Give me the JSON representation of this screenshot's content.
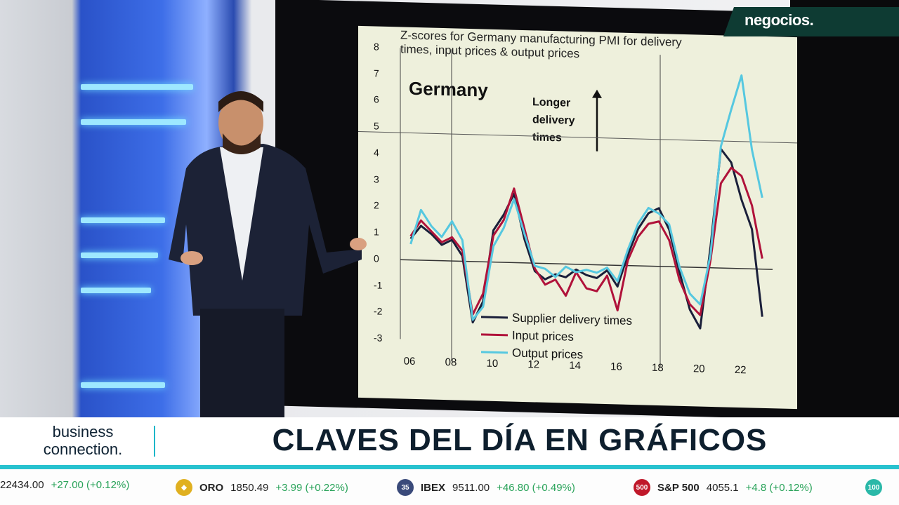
{
  "brand": {
    "name": "negocios."
  },
  "chart": {
    "title": "Z-scores for Germany manufacturing PMI for delivery\ntimes, input prices & output prices",
    "country_label": "Germany",
    "annotation": "Longer\ndelivery\ntimes",
    "y_ticks": [
      "8",
      "7",
      "6",
      "5",
      "4",
      "3",
      "2",
      "1",
      "0",
      "-1",
      "-2",
      "-3"
    ],
    "x_ticks": [
      "06",
      "08",
      "10",
      "12",
      "14",
      "16",
      "18",
      "20",
      "22"
    ],
    "legend": [
      {
        "label": "Supplier delivery times",
        "color": "#1a1f3a"
      },
      {
        "label": "Input prices",
        "color": "#b0123a"
      },
      {
        "label": "Output prices",
        "color": "#56c8e0"
      }
    ]
  },
  "chart_data": {
    "type": "line",
    "title": "Z-scores for Germany manufacturing PMI for delivery times, input prices & output prices",
    "x": [
      2006,
      2006.5,
      2007,
      2007.5,
      2008,
      2008.5,
      2009,
      2009.5,
      2010,
      2010.5,
      2011,
      2011.5,
      2012,
      2012.5,
      2013,
      2013.5,
      2014,
      2014.5,
      2015,
      2015.5,
      2016,
      2016.5,
      2017,
      2017.5,
      2018,
      2018.5,
      2019,
      2019.5,
      2020,
      2020.5,
      2021,
      2021.5,
      2022,
      2022.5,
      2023
    ],
    "ylim": [
      -3,
      8
    ],
    "series": [
      {
        "name": "Supplier delivery times",
        "color": "#1a1f3a",
        "values": [
          0.8,
          1.3,
          1.0,
          0.6,
          0.8,
          0.2,
          -2.3,
          -1.5,
          1.2,
          1.8,
          2.6,
          0.9,
          -0.3,
          -0.6,
          -0.4,
          -0.5,
          -0.2,
          -0.4,
          -0.5,
          -0.2,
          -0.8,
          0.4,
          1.4,
          2.0,
          2.2,
          1.4,
          -0.2,
          -1.6,
          -2.3,
          0.8,
          4.5,
          4.0,
          2.6,
          1.5,
          -1.8
        ]
      },
      {
        "name": "Input prices",
        "color": "#b0123a",
        "values": [
          0.9,
          1.5,
          1.1,
          0.7,
          0.9,
          0.4,
          -2.0,
          -1.2,
          1.0,
          1.6,
          2.8,
          1.3,
          -0.2,
          -0.8,
          -0.6,
          -1.2,
          -0.3,
          -0.9,
          -1.0,
          -0.4,
          -1.7,
          0.2,
          1.1,
          1.6,
          1.7,
          1.0,
          -0.5,
          -1.4,
          -1.8,
          0.3,
          3.2,
          3.8,
          3.5,
          2.4,
          0.4
        ]
      },
      {
        "name": "Output prices",
        "color": "#56c8e0",
        "values": [
          0.6,
          1.9,
          1.3,
          0.9,
          1.5,
          0.8,
          -2.2,
          -1.7,
          0.6,
          1.3,
          2.4,
          1.1,
          -0.1,
          -0.2,
          -0.5,
          -0.1,
          -0.3,
          -0.2,
          -0.3,
          -0.1,
          -0.6,
          0.6,
          1.6,
          2.2,
          2.0,
          1.6,
          0.0,
          -1.0,
          -1.4,
          0.5,
          4.6,
          6.0,
          7.3,
          4.5,
          2.7
        ]
      }
    ]
  },
  "lower_third": {
    "show_line1": "business",
    "show_line2": "connection.",
    "headline": "CLAVES DEL DÍA EN GRÁFICOS"
  },
  "ticker": [
    {
      "name": "",
      "value": "22434.00",
      "change": "+27.00 (+0.12%)",
      "badge": "",
      "badge_color": ""
    },
    {
      "name": "ORO",
      "value": "1850.49",
      "change": "+3.99 (+0.22%)",
      "badge": "",
      "badge_color": "#e0b020"
    },
    {
      "name": "IBEX",
      "value": "9511.00",
      "change": "+46.80 (+0.49%)",
      "badge": "35",
      "badge_color": "#3a4a7a"
    },
    {
      "name": "S&P 500",
      "value": "4055.1",
      "change": "+4.8 (+0.12%)",
      "badge": "500",
      "badge_color": "#c0182a"
    },
    {
      "name": "",
      "value": "",
      "change": "",
      "badge": "100",
      "badge_color": "#2ab8a8"
    }
  ]
}
